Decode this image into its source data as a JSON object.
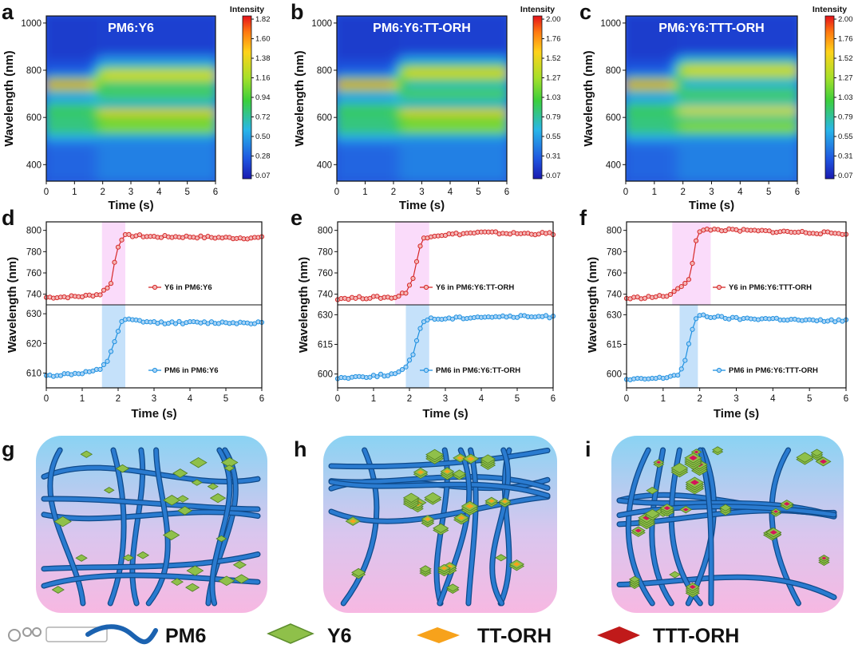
{
  "chart_data": [
    {
      "panel": "a",
      "type": "heatmap",
      "sample": "PM6:Y6",
      "xlabel": "Time (s)",
      "ylabel": "Wavelength (nm)",
      "xlim": [
        0,
        6
      ],
      "ylim": [
        330,
        1030
      ],
      "xticks": [
        "0",
        "1",
        "2",
        "3",
        "4",
        "5",
        "6"
      ],
      "yticks": [
        "400",
        "600",
        "800",
        "1000"
      ],
      "colorbar": {
        "title": "Intensity",
        "ticks": [
          "1.82",
          "1.60",
          "1.38",
          "1.16",
          "0.94",
          "0.72",
          "0.50",
          "0.28",
          "0.07"
        ]
      },
      "transition_s": 1.8,
      "peak_before_nm": 740,
      "peak_after_nm": [
        780,
        620
      ]
    },
    {
      "panel": "b",
      "type": "heatmap",
      "sample": "PM6:Y6:TT-ORH",
      "xlabel": "Time (s)",
      "ylabel": "Wavelength (nm)",
      "xlim": [
        0,
        6
      ],
      "ylim": [
        330,
        1030
      ],
      "xticks": [
        "0",
        "1",
        "2",
        "3",
        "4",
        "5",
        "6"
      ],
      "yticks": [
        "400",
        "600",
        "800",
        "1000"
      ],
      "colorbar": {
        "title": "Intensity",
        "ticks": [
          "2.00",
          "1.76",
          "1.52",
          "1.27",
          "1.03",
          "0.79",
          "0.55",
          "0.31",
          "0.07"
        ]
      },
      "transition_s": 2.2,
      "peak_before_nm": 740,
      "peak_after_nm": [
        790,
        620
      ]
    },
    {
      "panel": "c",
      "type": "heatmap",
      "sample": "PM6:Y6:TTT-ORH",
      "xlabel": "Time (s)",
      "ylabel": "Wavelength (nm)",
      "xlim": [
        0,
        6
      ],
      "ylim": [
        330,
        1030
      ],
      "xticks": [
        "0",
        "1",
        "2",
        "3",
        "4",
        "5",
        "6"
      ],
      "yticks": [
        "400",
        "600",
        "800",
        "1000"
      ],
      "colorbar": {
        "title": "Intensity",
        "ticks": [
          "2.00",
          "1.76",
          "1.52",
          "1.27",
          "1.03",
          "0.79",
          "0.55",
          "0.31",
          "0.07"
        ]
      },
      "transition_s": 1.8,
      "peak_before_nm": 740,
      "peak_after_nm": [
        800,
        630
      ]
    },
    {
      "panel": "d",
      "type": "line",
      "xlabel": "Time (s)",
      "ylabel": "Wavelength (nm)",
      "xlim": [
        0,
        6
      ],
      "xticks": [
        "0",
        "1",
        "2",
        "3",
        "4",
        "5",
        "6"
      ],
      "top": {
        "ylim": [
          730,
          808
        ],
        "yticks": [
          740,
          760,
          780,
          800
        ],
        "legend": "Y6 in PM6:Y6",
        "band": [
          1.55,
          2.2
        ],
        "x": [
          0,
          1.0,
          1.5,
          1.8,
          1.9,
          2.0,
          2.1,
          2.2,
          2.5,
          3,
          4,
          5,
          6
        ],
        "y": [
          737,
          738,
          740,
          750,
          770,
          785,
          792,
          795,
          795,
          794,
          794,
          793,
          793
        ]
      },
      "bottom": {
        "ylim": [
          605,
          633
        ],
        "yticks": [
          610,
          620,
          630
        ],
        "legend": "PM6 in PM6:Y6",
        "band": [
          1.55,
          2.2
        ],
        "x": [
          0,
          1.0,
          1.5,
          1.7,
          1.85,
          2.0,
          2.1,
          2.2,
          3,
          4,
          5,
          6
        ],
        "y": [
          609,
          610,
          611,
          614,
          619,
          624,
          627,
          628,
          627,
          627,
          627,
          627
        ]
      }
    },
    {
      "panel": "e",
      "type": "line",
      "xlabel": "Time (s)",
      "ylabel": "Wavelength (nm)",
      "xlim": [
        0,
        6
      ],
      "xticks": [
        "0",
        "1",
        "2",
        "3",
        "4",
        "5",
        "6"
      ],
      "top": {
        "ylim": [
          730,
          808
        ],
        "yticks": [
          740,
          760,
          780,
          800
        ],
        "legend": "Y6 in PM6:Y6:TT-ORH",
        "band": [
          1.6,
          2.55
        ],
        "x": [
          0,
          1,
          1.6,
          1.9,
          2.1,
          2.2,
          2.3,
          2.4,
          2.6,
          3,
          4,
          5,
          6
        ],
        "y": [
          736,
          737,
          737,
          742,
          755,
          770,
          785,
          793,
          795,
          796,
          798,
          797,
          797
        ]
      },
      "bottom": {
        "ylim": [
          593,
          635
        ],
        "yticks": [
          600,
          615,
          630
        ],
        "legend": "PM6 in PM6:Y6:TT-ORH",
        "band": [
          1.9,
          2.55
        ],
        "x": [
          0,
          1,
          1.6,
          1.9,
          2.1,
          2.2,
          2.3,
          2.4,
          2.6,
          3,
          4,
          5,
          6
        ],
        "y": [
          598,
          599,
          600,
          603,
          610,
          617,
          623,
          627,
          628,
          628,
          629,
          629,
          629
        ]
      }
    },
    {
      "panel": "f",
      "type": "line",
      "xlabel": "Time (s)",
      "ylabel": "Wavelength (nm)",
      "xlim": [
        0,
        6
      ],
      "xticks": [
        "0",
        "1",
        "2",
        "3",
        "4",
        "5",
        "6"
      ],
      "top": {
        "ylim": [
          730,
          808
        ],
        "yticks": [
          740,
          760,
          780,
          800
        ],
        "legend": "Y6 in PM6:Y6:TTT-ORH",
        "band": [
          1.25,
          2.3
        ],
        "x": [
          0,
          1,
          1.25,
          1.5,
          1.7,
          1.8,
          1.9,
          2.0,
          2.2,
          3,
          4,
          5,
          6
        ],
        "y": [
          736,
          738,
          740,
          748,
          754,
          770,
          790,
          798,
          801,
          800,
          799,
          798,
          797
        ]
      },
      "bottom": {
        "ylim": [
          593,
          635
        ],
        "yticks": [
          600,
          615,
          630
        ],
        "legend": "PM6 in PM6:Y6:TTT-ORH",
        "band": [
          1.45,
          1.95
        ],
        "x": [
          0,
          1,
          1.45,
          1.6,
          1.7,
          1.8,
          1.9,
          2.0,
          2.3,
          3,
          4,
          5,
          6
        ],
        "y": [
          597,
          598,
          600,
          607,
          615,
          622,
          628,
          630,
          629,
          628,
          628,
          627,
          627
        ]
      }
    }
  ],
  "illustrations": [
    {
      "panel": "g",
      "description": "PM6 fibrils with dispersed Y6"
    },
    {
      "panel": "h",
      "description": "PM6 fibrils with Y6 stacks and TT-ORH"
    },
    {
      "panel": "i",
      "description": "PM6 fibrils with Y6 stacks and TTT-ORH"
    }
  ],
  "key": {
    "pm6": "PM6",
    "y6": "Y6",
    "tt": "TT-ORH",
    "ttt": "TTT-ORH",
    "colors": {
      "pm6": "#1b62b0",
      "y6": "#8fc04a",
      "tt": "#f7a21b",
      "ttt": "#c01a1a"
    }
  }
}
